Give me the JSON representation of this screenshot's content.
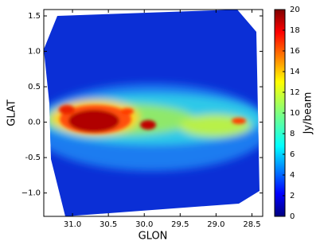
{
  "chart_data": {
    "type": "image",
    "x_label": "GLON",
    "y_label": "GLAT",
    "colorbar_label": "Jy/beam",
    "xlim": [
      31.4,
      28.35
    ],
    "xticks": [
      {
        "value": 31,
        "label": "31.0"
      },
      {
        "value": 30.5,
        "label": "30.5"
      },
      {
        "value": 30,
        "label": "30.0"
      },
      29.5,
      {
        "value": 29,
        "label": "29.0"
      },
      28.5
    ],
    "ylim": [
      -1.33,
      1.59
    ],
    "yticks": [
      {
        "value": -1,
        "label": "−1.0"
      },
      -0.5,
      {
        "value": 0,
        "label": "0.0"
      },
      0.5,
      {
        "value": 1,
        "label": "1.0"
      },
      1.5
    ],
    "clim": [
      0,
      20
    ],
    "cticks": [
      0,
      2,
      4,
      6,
      8,
      10,
      12,
      14,
      16,
      18,
      20
    ]
  }
}
